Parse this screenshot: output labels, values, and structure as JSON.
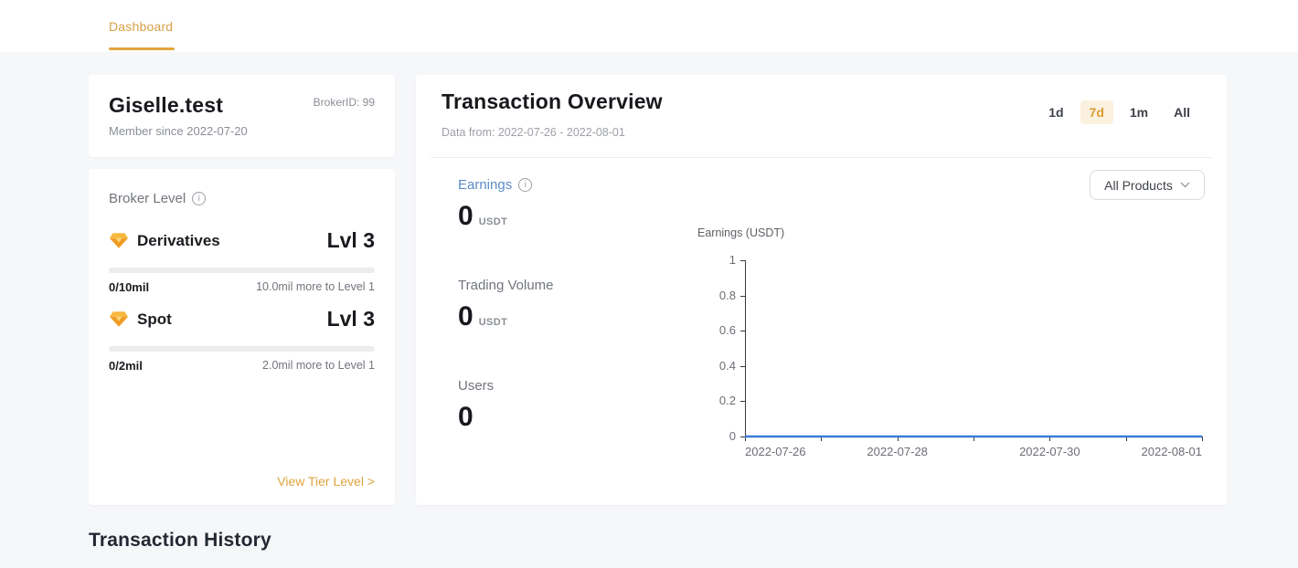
{
  "topbar": {
    "tab": "Dashboard"
  },
  "profile_card": {
    "name": "Giselle.test",
    "broker_id": "BrokerID: 99",
    "member_since": "Member since 2022-07-20"
  },
  "level_card": {
    "title": "Broker Level",
    "tiers": [
      {
        "name": "Derivatives",
        "level": "Lvl 3",
        "progress": "0/10mil",
        "remaining": "10.0mil more to Level 1",
        "progress_pct": 0
      },
      {
        "name": "Spot",
        "level": "Lvl 3",
        "progress": "0/2mil",
        "remaining": "2.0mil more to Level 1",
        "progress_pct": 0
      }
    ],
    "link": "View Tier Level  >"
  },
  "overview_card": {
    "title": "Transaction Overview",
    "subtitle": "Data from: 2022-07-26 - 2022-08-01",
    "ranges": [
      {
        "label": "1d",
        "active": false
      },
      {
        "label": "7d",
        "active": true
      },
      {
        "label": "1m",
        "active": false
      },
      {
        "label": "All",
        "active": false
      }
    ],
    "stats": [
      {
        "label": "Earnings",
        "value": "0",
        "unit": "USDT",
        "has_info": true
      },
      {
        "label": "Trading Volume",
        "value": "0",
        "unit": "USDT",
        "has_info": false
      },
      {
        "label": "Users",
        "value": "0",
        "unit": "",
        "has_info": false
      }
    ],
    "products_dropdown": "All Products"
  },
  "chart_data": {
    "type": "line",
    "title": "Earnings (USDT)",
    "x": [
      "2022-07-26",
      "2022-07-27",
      "2022-07-28",
      "2022-07-29",
      "2022-07-30",
      "2022-07-31",
      "2022-08-01"
    ],
    "x_labels_shown": [
      "2022-07-26",
      "2022-07-28",
      "2022-07-30",
      "2022-08-01"
    ],
    "series": [
      {
        "name": "Earnings",
        "values": [
          0,
          0,
          0,
          0,
          0,
          0,
          0
        ],
        "color": "#3a7cd5"
      }
    ],
    "ylim": [
      0,
      1
    ],
    "yticks": [
      0,
      0.2,
      0.4,
      0.6,
      0.8,
      1
    ],
    "xlabel": "",
    "ylabel": "",
    "grid": false,
    "legend": "none"
  },
  "history": {
    "title": "Transaction History"
  },
  "colors": {
    "accent_orange": "#d9a236",
    "tab_underline": "#e2a53c",
    "active_pill_bg": "#faf1de",
    "earnings_blue": "#5b8cc8",
    "chart_line_blue": "#3a7cd5",
    "page_bg": "#f6f7f9"
  }
}
